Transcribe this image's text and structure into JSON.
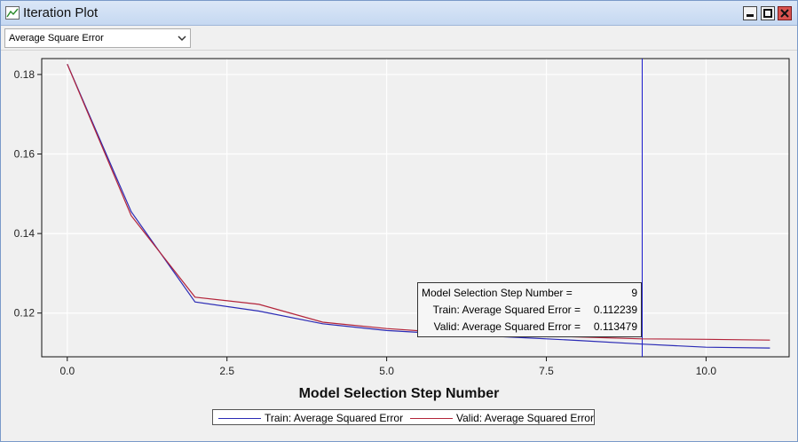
{
  "window": {
    "title": "Iteration Plot"
  },
  "toolbar": {
    "statistic_select": {
      "value": "Average Square Error"
    }
  },
  "chart_data": {
    "type": "line",
    "xlabel": "Model Selection Step Number",
    "ylabel": "",
    "xlim": [
      -0.4,
      11.3
    ],
    "ylim": [
      0.109,
      0.184
    ],
    "xticks": [
      0.0,
      2.5,
      5.0,
      7.5,
      10.0
    ],
    "xtick_labels": [
      "0.0",
      "2.5",
      "5.0",
      "7.5",
      "10.0"
    ],
    "yticks": [
      0.12,
      0.14,
      0.16,
      0.18
    ],
    "ytick_labels": [
      "0.12",
      "0.14",
      "0.16",
      "0.18"
    ],
    "grid": true,
    "legend_position": "bottom",
    "x": [
      0,
      1,
      2,
      3,
      4,
      5,
      6,
      7,
      8,
      9,
      10,
      11
    ],
    "series": [
      {
        "name": "Train: Average Squared Error",
        "color": "#2b2bb5",
        "values": [
          0.1826,
          0.1455,
          0.1228,
          0.1205,
          0.1173,
          0.1156,
          0.1147,
          0.1139,
          0.1131,
          0.1122,
          0.1114,
          0.1112
        ]
      },
      {
        "name": "Valid: Average Squared Error",
        "color": "#b3243a",
        "values": [
          0.1826,
          0.1445,
          0.124,
          0.1222,
          0.1177,
          0.1161,
          0.115,
          0.1145,
          0.114,
          0.1135,
          0.1134,
          0.1132
        ]
      }
    ],
    "selected_step": 9,
    "selected_line_color": "#1a1acc"
  },
  "tooltip": {
    "step_label": "Model Selection Step Number =",
    "step_value": "9",
    "train_label": "Train: Average Squared Error =",
    "train_value": "0.112239",
    "valid_label": "Valid: Average Squared Error =",
    "valid_value": "0.113479"
  },
  "icons": {
    "title": "line-chart-icon",
    "dropdown": "chevron-down-icon"
  }
}
